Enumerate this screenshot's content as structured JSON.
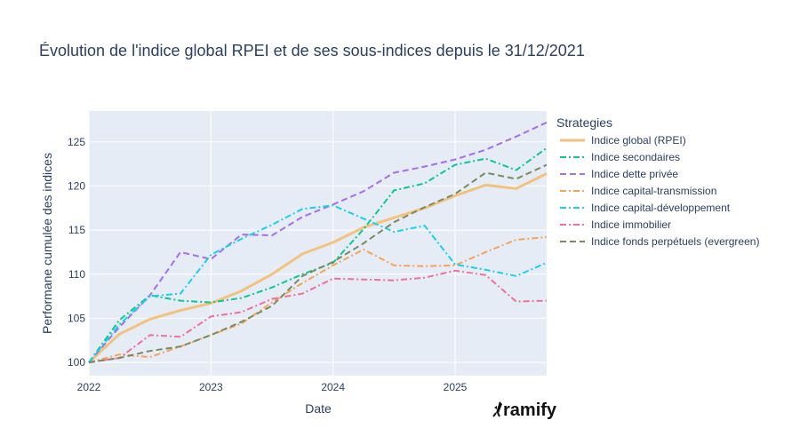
{
  "chart_data": {
    "type": "line",
    "title": "Évolution de l'indice global RPEI et de ses sous-indices depuis le 31/12/2021",
    "xlabel": "Date",
    "ylabel": "Performane cumulée des indices",
    "xlim": [
      2022.0,
      2025.75
    ],
    "ylim": [
      98.5,
      128.5
    ],
    "x_ticks": [
      2022,
      2023,
      2024,
      2025
    ],
    "x_tick_labels": [
      "2022",
      "2023",
      "2024",
      "2025"
    ],
    "y_ticks": [
      100,
      105,
      110,
      115,
      120,
      125
    ],
    "y_tick_labels": [
      "100",
      "105",
      "110",
      "115",
      "120",
      "125"
    ],
    "grid": true,
    "legend": {
      "title": "Strategies",
      "position": "right"
    },
    "x": [
      2022.0,
      2022.25,
      2022.5,
      2022.75,
      2023.0,
      2023.25,
      2023.5,
      2023.75,
      2024.0,
      2024.25,
      2024.5,
      2024.75,
      2025.0,
      2025.25,
      2025.5,
      2025.75
    ],
    "series": [
      {
        "name": "Indice global (RPEI)",
        "color": "#f2c27e",
        "dash": "solid",
        "width": 3,
        "values": [
          100.0,
          103.2,
          104.9,
          105.9,
          106.7,
          108.1,
          110.0,
          112.3,
          113.6,
          115.3,
          116.4,
          117.5,
          118.9,
          120.1,
          119.7,
          121.4
        ]
      },
      {
        "name": "Indice secondaires",
        "color": "#11c492",
        "dash": "dashdot",
        "width": 2,
        "values": [
          100.0,
          104.8,
          107.6,
          107.0,
          106.8,
          107.3,
          108.5,
          110.0,
          111.3,
          115.1,
          119.5,
          120.3,
          122.4,
          123.1,
          121.8,
          124.3
        ]
      },
      {
        "name": "Indice dette privée",
        "color": "#a56eea",
        "dash": "dash",
        "width": 2,
        "values": [
          100.0,
          104.0,
          107.6,
          112.5,
          111.7,
          114.5,
          114.4,
          116.5,
          117.9,
          119.4,
          121.5,
          122.2,
          123.0,
          124.1,
          125.6,
          127.2
        ]
      },
      {
        "name": "Indice capital-transmission",
        "color": "#f5a25a",
        "dash": "dashdot",
        "width": 2,
        "values": [
          100.0,
          100.9,
          100.6,
          101.8,
          103.1,
          104.4,
          106.8,
          109.0,
          111.0,
          112.8,
          111.0,
          110.9,
          111.0,
          112.5,
          113.9,
          114.2
        ]
      },
      {
        "name": "Indice capital-développement",
        "color": "#1ccfe6",
        "dash": "dashdot",
        "width": 2,
        "values": [
          100.0,
          104.3,
          107.5,
          107.8,
          112.2,
          114.0,
          115.6,
          117.4,
          117.8,
          116.3,
          114.8,
          115.5,
          111.1,
          110.5,
          109.8,
          111.3
        ]
      },
      {
        "name": "Indice immobilier",
        "color": "#f0709c",
        "dash": "dashdot",
        "width": 2,
        "values": [
          100.0,
          100.5,
          103.1,
          102.9,
          105.2,
          105.7,
          107.2,
          107.8,
          109.5,
          109.4,
          109.3,
          109.6,
          110.4,
          109.9,
          106.9,
          107.0
        ]
      },
      {
        "name": "Indice fonds perpétuels (evergreen)",
        "color": "#7a8a60",
        "dash": "dash",
        "width": 2,
        "values": [
          100.0,
          100.5,
          101.3,
          101.8,
          103.1,
          104.6,
          106.4,
          109.8,
          111.4,
          113.5,
          115.9,
          117.6,
          119.1,
          121.5,
          120.8,
          122.4
        ]
      }
    ]
  },
  "branding": {
    "logo_text": "ramify"
  }
}
